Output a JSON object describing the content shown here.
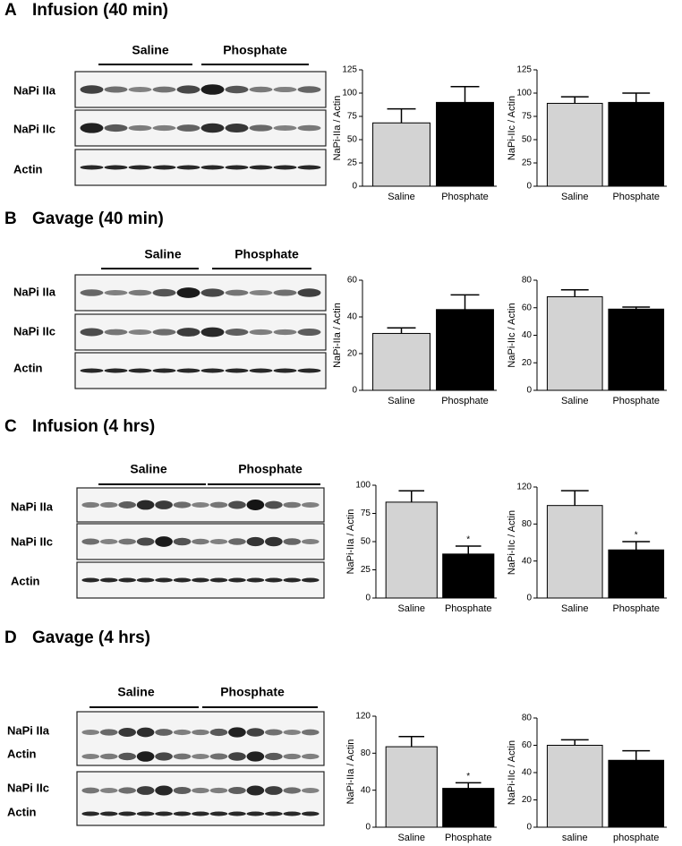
{
  "panels": [
    {
      "letter": "A",
      "title": "Infusion (40 min)",
      "groups": [
        "Saline",
        "Phosphate"
      ],
      "rows": [
        "NaPi IIa",
        "NaPi IIc",
        "Actin"
      ]
    },
    {
      "letter": "B",
      "title": "Gavage (40 min)",
      "groups": [
        "Saline",
        "Phosphate"
      ],
      "rows": [
        "NaPi IIa",
        "NaPi IIc",
        "Actin"
      ]
    },
    {
      "letter": "C",
      "title": "Infusion (4 hrs)",
      "groups": [
        "Saline",
        "Phosphate"
      ],
      "rows": [
        "NaPi IIa",
        "NaPi IIc",
        "Actin"
      ]
    },
    {
      "letter": "D",
      "title": "Gavage (4 hrs)",
      "groups": [
        "Saline",
        "Phosphate"
      ],
      "rows": [
        "NaPi IIa",
        "Actin",
        "NaPi IIc",
        "Actin"
      ]
    }
  ],
  "chart_data": [
    {
      "type": "bar",
      "ylabel": "NaPi-IIa / Actin",
      "categories": [
        "Saline",
        "Phosphate"
      ],
      "values": [
        68,
        90
      ],
      "errors": [
        15,
        17
      ],
      "colors": [
        "#d3d3d3",
        "#000000"
      ],
      "ylim": [
        0,
        125
      ],
      "yticks": [
        0,
        25,
        50,
        75,
        100,
        125
      ]
    },
    {
      "type": "bar",
      "ylabel": "NaPi-IIc / Actin",
      "categories": [
        "Saline",
        "Phosphate"
      ],
      "values": [
        89,
        90
      ],
      "errors": [
        7,
        10
      ],
      "colors": [
        "#d3d3d3",
        "#000000"
      ],
      "ylim": [
        0,
        125
      ],
      "yticks": [
        0,
        25,
        50,
        75,
        100,
        125
      ]
    },
    {
      "type": "bar",
      "ylabel": "NaPi-IIa / Actin",
      "categories": [
        "Saline",
        "Phosphate"
      ],
      "values": [
        31,
        44
      ],
      "errors": [
        3,
        8
      ],
      "colors": [
        "#d3d3d3",
        "#000000"
      ],
      "ylim": [
        0,
        60
      ],
      "yticks": [
        0,
        20,
        40,
        60
      ]
    },
    {
      "type": "bar",
      "ylabel": "NaPi-IIc / Actin",
      "categories": [
        "Saline",
        "Phosphate"
      ],
      "values": [
        68,
        59
      ],
      "errors": [
        5,
        1.5
      ],
      "colors": [
        "#d3d3d3",
        "#000000"
      ],
      "ylim": [
        0,
        80
      ],
      "yticks": [
        0,
        20,
        40,
        60,
        80
      ]
    },
    {
      "type": "bar",
      "ylabel": "NaPi-IIa / Actin",
      "categories": [
        "Saline",
        "Phosphate"
      ],
      "values": [
        85,
        39
      ],
      "errors": [
        10,
        7
      ],
      "colors": [
        "#d3d3d3",
        "#000000"
      ],
      "ylim": [
        0,
        100
      ],
      "yticks": [
        0,
        25,
        50,
        75,
        100
      ],
      "annotations": [
        {
          "text": "*",
          "category": "Phosphate"
        }
      ]
    },
    {
      "type": "bar",
      "ylabel": "NaPi-IIc / Actin",
      "categories": [
        "Saline",
        "Phosphate"
      ],
      "values": [
        100,
        52
      ],
      "errors": [
        16,
        9
      ],
      "colors": [
        "#d3d3d3",
        "#000000"
      ],
      "ylim": [
        0,
        120
      ],
      "yticks": [
        0,
        40,
        80,
        120
      ],
      "annotations": [
        {
          "text": "*",
          "category": "Phosphate"
        }
      ]
    },
    {
      "type": "bar",
      "ylabel": "NaPi-IIa / Actin",
      "categories": [
        "Saline",
        "Phosphate"
      ],
      "values": [
        87,
        42
      ],
      "errors": [
        11,
        6
      ],
      "colors": [
        "#d3d3d3",
        "#000000"
      ],
      "ylim": [
        0,
        120
      ],
      "yticks": [
        0,
        40,
        80,
        120
      ],
      "annotations": [
        {
          "text": "*",
          "category": "Phosphate"
        }
      ]
    },
    {
      "type": "bar",
      "ylabel": "NaPi-IIc / Actin",
      "categories": [
        "saline",
        "phosphate"
      ],
      "values": [
        60,
        49
      ],
      "errors": [
        4,
        7
      ],
      "colors": [
        "#d3d3d3",
        "#000000"
      ],
      "ylim": [
        0,
        80
      ],
      "yticks": [
        0,
        20,
        40,
        60,
        80
      ]
    }
  ]
}
